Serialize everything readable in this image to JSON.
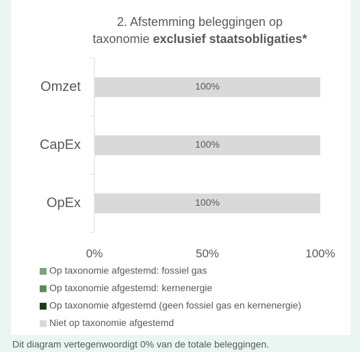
{
  "chart_data": {
    "type": "stacked_barh",
    "title": [
      "2. Afstemming beleggingen op",
      "taxonomie",
      "exclusief staatsobligaties*"
    ],
    "categories": [
      "Omzet",
      "CapEx",
      "OpEx"
    ],
    "series": [
      {
        "name": "Op taxonomie afgestemd: fossiel gas",
        "color": "#7fa37f",
        "values": [
          0,
          0,
          0
        ]
      },
      {
        "name": "Op taxonomie afgestemd: kernenergie",
        "color": "#5a8a5a",
        "values": [
          0,
          0,
          0
        ]
      },
      {
        "name": "Op taxonomie afgestemd (geen fossiel gas en kernenergie)",
        "color": "#173f17",
        "values": [
          0,
          0,
          0
        ]
      },
      {
        "name": "Niet op taxonomie afgestemd",
        "color": "#d9d9d9",
        "values": [
          100,
          100,
          100
        ],
        "value_labels": [
          "100%",
          "100%",
          "100%"
        ]
      }
    ],
    "xlim": [
      0,
      100
    ],
    "xticks": [
      {
        "value": 0,
        "label": "0%"
      },
      {
        "value": 50,
        "label": "50%"
      },
      {
        "value": 100,
        "label": "100%"
      }
    ],
    "legend": "bottom",
    "footnote": "Dit diagram vertegenwoordigt 0% van de totale beleggingen."
  }
}
